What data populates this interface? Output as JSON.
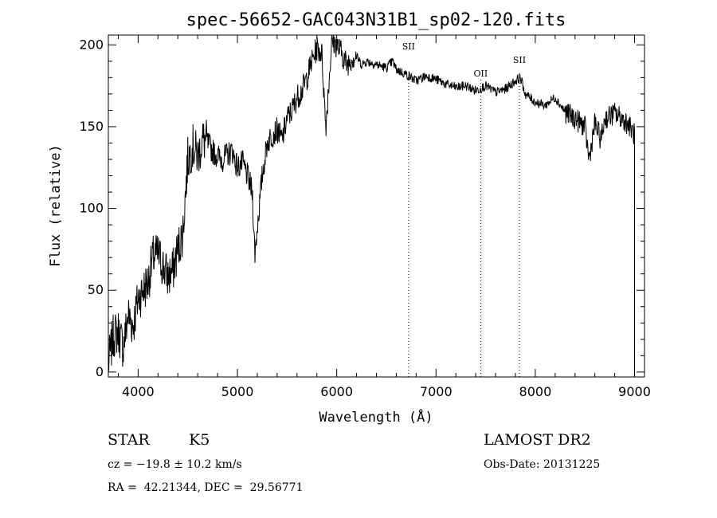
{
  "chart_data": {
    "type": "line",
    "title": "spec-56652-GAC043N31B1_sp02-120.fits",
    "xlabel": "Wavelength (Å)",
    "ylabel": "Flux (relative)",
    "xlim": [
      3700,
      9100
    ],
    "ylim": [
      -3,
      206
    ],
    "x_ticks": [
      4000,
      5000,
      6000,
      7000,
      8000,
      9000
    ],
    "y_ticks": [
      0,
      50,
      100,
      150,
      200
    ],
    "grid": false,
    "line_color": "#000000",
    "series": [
      {
        "x": [
          3700,
          3750,
          3800,
          3850,
          3900,
          3950,
          4000,
          4050,
          4100,
          4150,
          4200,
          4250,
          4300,
          4350,
          4400,
          4450,
          4500,
          4550,
          4600,
          4650,
          4700,
          4750,
          4800,
          4850,
          4900,
          4950,
          5000,
          5050,
          5100,
          5150,
          5175,
          5200,
          5250,
          5300,
          5350,
          5400,
          5450,
          5500,
          5550,
          5600,
          5650,
          5700,
          5750,
          5800,
          5850,
          5890,
          5950,
          6000,
          6050,
          6100,
          6150,
          6200,
          6250,
          6300,
          6400,
          6500,
          6563,
          6600,
          6700,
          6800,
          6900,
          7000,
          7100,
          7200,
          7300,
          7400,
          7500,
          7600,
          7700,
          7800,
          7850,
          7900,
          8000,
          8100,
          8200,
          8300,
          8400,
          8500,
          8542,
          8600,
          8662,
          8700,
          8800,
          8900,
          8950,
          9000
        ],
        "y": [
          5,
          22,
          25,
          15,
          35,
          28,
          45,
          50,
          55,
          70,
          72,
          65,
          58,
          62,
          75,
          85,
          130,
          138,
          132,
          142,
          140,
          135,
          132,
          130,
          133,
          135,
          125,
          128,
          120,
          110,
          72,
          88,
          120,
          140,
          145,
          148,
          142,
          155,
          160,
          168,
          172,
          180,
          190,
          198,
          195,
          150,
          202,
          200,
          195,
          188,
          192,
          193,
          188,
          190,
          188,
          186,
          190,
          185,
          182,
          178,
          181,
          179,
          176,
          174,
          175,
          172,
          175,
          171,
          173,
          178,
          180,
          170,
          165,
          163,
          168,
          159,
          155,
          150,
          130,
          152,
          142,
          155,
          158,
          154,
          150,
          145
        ]
      }
    ],
    "line_annotations": [
      {
        "label": "SII",
        "x": 6724
      },
      {
        "label": "OII",
        "x": 7450
      },
      {
        "label": "SII",
        "x": 7840
      }
    ]
  },
  "info": {
    "object_class": "STAR",
    "subclass": "K5",
    "redshift": "cz = −19.8 ± 10.2 km/s",
    "coords": "RA =  42.21344, DEC =  29.56771",
    "survey": "LAMOST DR2",
    "obs_date": "Obs-Date: 20131225"
  }
}
